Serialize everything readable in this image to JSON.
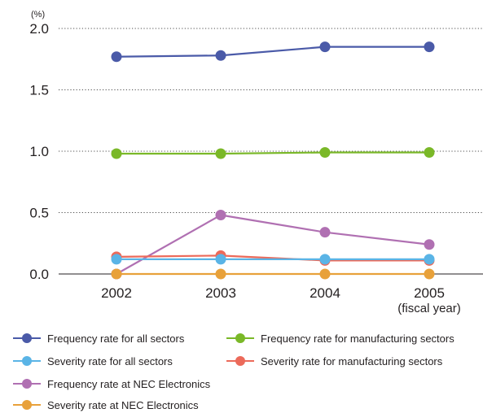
{
  "chart_data": {
    "type": "line",
    "y_unit_label": "(%)",
    "x_axis_note": "(fiscal year)",
    "categories": [
      "2002",
      "2003",
      "2004",
      "2005"
    ],
    "y_ticks": [
      "0.0",
      "0.5",
      "1.0",
      "1.5",
      "2.0"
    ],
    "ylim": [
      0,
      2.0
    ],
    "grid": "horizontal dotted",
    "legend_position": "bottom",
    "series": [
      {
        "name": "Frequency rate for all sectors",
        "color": "#4a5aa8",
        "values": [
          1.77,
          1.78,
          1.85,
          1.85
        ]
      },
      {
        "name": "Frequency rate for manufacturing sectors",
        "color": "#7ab828",
        "values": [
          0.98,
          0.98,
          0.99,
          0.99
        ]
      },
      {
        "name": "Severity rate for all sectors",
        "color": "#5ab4e6",
        "values": [
          0.12,
          0.12,
          0.12,
          0.12
        ]
      },
      {
        "name": "Severity rate for manufacturing sectors",
        "color": "#ec6a5a",
        "values": [
          0.14,
          0.15,
          0.11,
          0.11
        ]
      },
      {
        "name": "Frequency rate at NEC Electronics",
        "color": "#b070b2",
        "values": [
          0.0,
          0.48,
          0.34,
          0.24
        ]
      },
      {
        "name": "Severity rate at NEC Electronics",
        "color": "#e8a13a",
        "values": [
          0.0,
          0.0,
          0.0,
          0.0
        ]
      }
    ]
  }
}
